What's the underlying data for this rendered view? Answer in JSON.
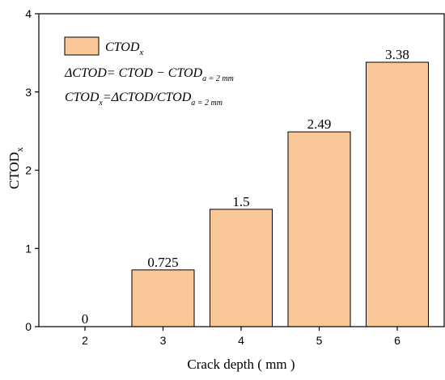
{
  "chart_data": {
    "type": "bar",
    "categories": [
      "2",
      "3",
      "4",
      "5",
      "6"
    ],
    "values": [
      0,
      0.725,
      1.5,
      2.49,
      3.38
    ],
    "value_labels": [
      "0",
      "0.725",
      "1.5",
      "2.49",
      "3.38"
    ],
    "xlabel": "Crack depth ( mm )",
    "ylabel_main": "CTOD",
    "ylabel_sub": "x",
    "ylim": [
      0,
      4
    ],
    "yticks": [
      "0",
      "1",
      "2",
      "3",
      "4"
    ],
    "grid": false,
    "bar_color": "#FAC898",
    "legend": {
      "placement": "top-left",
      "series_main": "CTOD",
      "series_sub": "x",
      "eq1_main": "ΔCTOD= CTOD − CTOD",
      "eq1_sub": "a = 2 mm",
      "eq2_main": "CTOD",
      "eq2_sub1": "x",
      "eq2_mid": "=ΔCTOD/CTOD",
      "eq2_sub2": "a = 2 mm"
    }
  }
}
